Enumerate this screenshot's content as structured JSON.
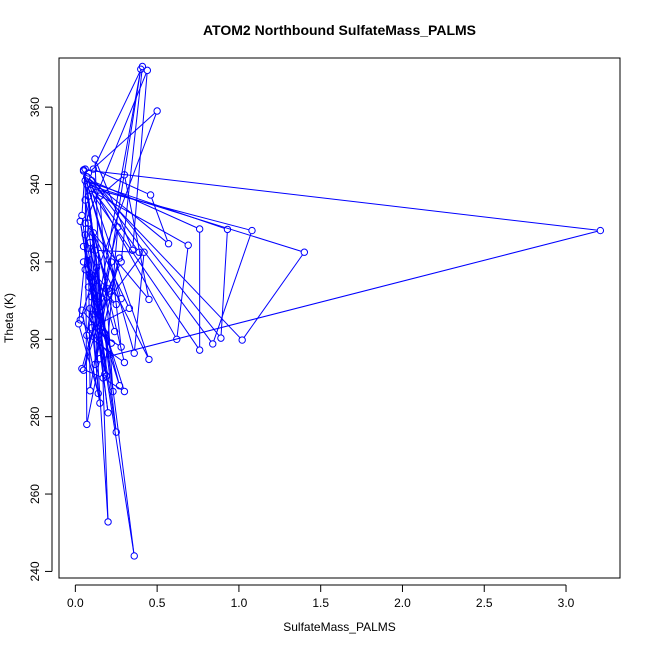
{
  "chart_data": {
    "type": "line",
    "title": "ATOM2 Northbound SulfateMass_PALMS",
    "xlabel": "SulfateMass_PALMS",
    "ylabel": "Theta (K)",
    "xlim": [
      -0.1,
      3.33
    ],
    "ylim": [
      238.3,
      372.7
    ],
    "xticks": [
      0.0,
      0.5,
      1.0,
      1.5,
      2.0,
      2.5,
      3.0
    ],
    "xtick_labels": [
      "0.0",
      "0.5",
      "1.0",
      "1.5",
      "2.0",
      "2.5",
      "3.0"
    ],
    "yticks": [
      240,
      260,
      280,
      300,
      320,
      340,
      360
    ],
    "ytick_labels": [
      "240",
      "260",
      "280",
      "300",
      "320",
      "340",
      "360"
    ],
    "grid": false,
    "legend": "none",
    "line_color": "#0000ff",
    "series": [
      {
        "name": "",
        "points": [
          [
            0.05,
            343.8
          ],
          [
            3.21,
            328.1
          ],
          [
            0.15,
            295.0
          ],
          [
            0.07,
            278.0
          ],
          [
            0.06,
            344.0
          ],
          [
            0.04,
            332.0
          ],
          [
            0.2,
            281.0
          ],
          [
            0.08,
            322.0
          ],
          [
            0.09,
            286.7
          ],
          [
            0.4,
            369.8
          ],
          [
            0.13,
            307.0
          ],
          [
            0.36,
            244.0
          ],
          [
            0.07,
            340.0
          ],
          [
            1.4,
            322.5
          ],
          [
            1.02,
            299.8
          ],
          [
            0.07,
            342.0
          ],
          [
            0.45,
            294.8
          ],
          [
            0.09,
            325.0
          ],
          [
            0.2,
            252.8
          ],
          [
            0.12,
            346.6
          ],
          [
            0.35,
            323.0
          ],
          [
            0.44,
            369.5
          ],
          [
            0.06,
            330.0
          ],
          [
            0.45,
            310.3
          ],
          [
            0.3,
            342.5
          ],
          [
            0.15,
            337.0
          ],
          [
            0.23,
            286.5
          ],
          [
            0.06,
            341.0
          ],
          [
            0.93,
            328.4
          ],
          [
            0.89,
            300.3
          ],
          [
            0.08,
            343.0
          ],
          [
            0.5,
            359.0
          ],
          [
            0.11,
            315.0
          ],
          [
            0.25,
            276.0
          ],
          [
            0.12,
            323.0
          ],
          [
            0.39,
            322.5
          ],
          [
            0.1,
            339.0
          ],
          [
            1.08,
            328.1
          ],
          [
            0.84,
            298.8
          ],
          [
            0.1,
            341.0
          ],
          [
            0.76,
            328.5
          ],
          [
            0.76,
            297.2
          ],
          [
            0.09,
            338.5
          ],
          [
            0.69,
            324.3
          ],
          [
            0.62,
            300.0
          ],
          [
            0.07,
            342.0
          ],
          [
            0.57,
            324.7
          ],
          [
            0.46,
            337.3
          ],
          [
            0.11,
            344.0
          ],
          [
            0.41,
            370.5
          ],
          [
            0.28,
            320.0
          ],
          [
            0.11,
            305.0
          ],
          [
            0.42,
            322.5
          ],
          [
            0.36,
            296.4
          ],
          [
            0.05,
            343.5
          ],
          [
            0.28,
            310.5
          ],
          [
            0.21,
            312.5
          ],
          [
            0.05,
            320.0
          ],
          [
            0.3,
            286.5
          ],
          [
            0.17,
            290.0
          ],
          [
            0.04,
            292.4
          ],
          [
            0.22,
            320.0
          ],
          [
            0.28,
            298.0
          ],
          [
            0.1,
            303.0
          ],
          [
            0.33,
            308.0
          ],
          [
            0.08,
            330.0
          ],
          [
            0.02,
            304.0
          ],
          [
            0.14,
            286.0
          ],
          [
            0.09,
            316.0
          ],
          [
            0.03,
            330.5
          ],
          [
            0.18,
            291.0
          ],
          [
            0.26,
            329.0
          ],
          [
            0.05,
            292.0
          ],
          [
            0.27,
            321.0
          ],
          [
            0.12,
            293.5
          ],
          [
            0.2,
            313.0
          ],
          [
            0.06,
            336.0
          ],
          [
            0.19,
            290.5
          ],
          [
            0.09,
            308.0
          ],
          [
            0.15,
            283.5
          ],
          [
            0.04,
            307.5
          ],
          [
            0.22,
            299.0
          ],
          [
            0.08,
            313.5
          ],
          [
            0.25,
            309.0
          ],
          [
            0.06,
            318.0
          ],
          [
            0.16,
            304.0
          ],
          [
            0.11,
            327.5
          ],
          [
            0.3,
            294.0
          ],
          [
            0.07,
            301.0
          ],
          [
            0.13,
            318.5
          ],
          [
            0.03,
            305.0
          ],
          [
            0.21,
            296.0
          ],
          [
            0.1,
            311.0
          ],
          [
            0.27,
            288.0
          ],
          [
            0.05,
            324.0
          ],
          [
            0.18,
            301.5
          ],
          [
            0.08,
            337.0
          ],
          [
            0.14,
            309.5
          ],
          [
            0.06,
            327.0
          ],
          [
            0.24,
            302.0
          ]
        ]
      }
    ]
  }
}
